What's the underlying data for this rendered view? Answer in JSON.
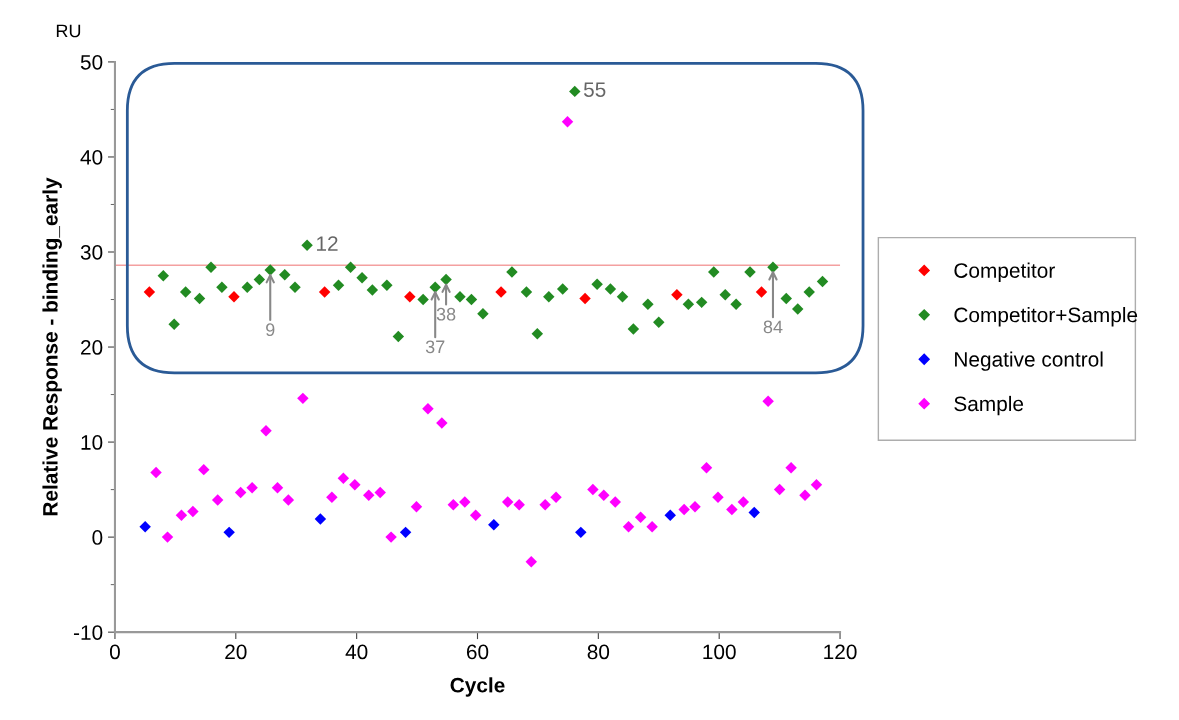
{
  "chart_data": {
    "type": "scatter",
    "xlabel": "Cycle",
    "ylabel": "Relative Response - binding_early",
    "xlim": [
      0,
      120
    ],
    "xticks": [
      0,
      20,
      40,
      60,
      80,
      100,
      120
    ],
    "ylim": [
      -10,
      50
    ],
    "yticks": [
      -10,
      0,
      10,
      20,
      30,
      40,
      50
    ],
    "marker": "diamond",
    "grid": false,
    "legend": "right",
    "series": [
      {
        "name": "Competitor",
        "color": "#ff0000",
        "x": [
          5.7,
          19.7,
          34.7,
          48.8,
          63.9,
          77.8,
          93.0,
          107.0
        ],
        "values": [
          25.8,
          25.3,
          25.8,
          25.3,
          25.8,
          25.1,
          25.5,
          25.8
        ]
      },
      {
        "name": "Competitor+Sample",
        "color": "#228b22",
        "x": [
          8.0,
          9.8,
          11.7,
          14.0,
          15.9,
          17.7,
          21.9,
          23.9,
          25.7,
          28.1,
          29.8,
          31.8,
          37.0,
          39.0,
          40.9,
          42.6,
          45.0,
          46.9,
          51.0,
          53.0,
          54.8,
          57.1,
          59.0,
          60.9,
          65.7,
          68.1,
          69.9,
          71.8,
          74.1,
          76.1,
          79.8,
          82.0,
          84.0,
          85.8,
          88.2,
          90.0,
          94.9,
          97.1,
          99.1,
          101.0,
          102.8,
          105.1,
          108.9,
          111.1,
          113.0,
          114.9,
          117.1
        ],
        "values": [
          27.5,
          22.4,
          25.8,
          25.1,
          28.4,
          26.3,
          26.3,
          27.1,
          28.1,
          27.6,
          26.3,
          30.7,
          26.5,
          28.4,
          27.3,
          26.0,
          26.5,
          21.1,
          25.0,
          26.3,
          27.1,
          25.3,
          25.0,
          23.5,
          27.9,
          25.8,
          21.4,
          25.3,
          26.1,
          46.9,
          26.6,
          26.1,
          25.3,
          21.9,
          24.5,
          22.6,
          24.5,
          24.7,
          27.9,
          25.5,
          24.5,
          27.9,
          28.4,
          25.1,
          24.0,
          25.8,
          26.9
        ]
      },
      {
        "name": "Negative control",
        "color": "#0000ff",
        "x": [
          5.0,
          18.9,
          34.0,
          48.1,
          62.7,
          77.1,
          91.9,
          105.8
        ],
        "values": [
          1.1,
          0.5,
          1.9,
          0.5,
          1.3,
          0.5,
          2.3,
          2.6
        ]
      },
      {
        "name": "Sample",
        "color": "#ff00ff",
        "x": [
          6.8,
          8.7,
          11.0,
          12.9,
          14.7,
          17.0,
          20.8,
          22.7,
          25.0,
          26.9,
          28.7,
          31.1,
          35.9,
          37.8,
          39.7,
          42.0,
          43.9,
          45.7,
          49.9,
          51.8,
          54.1,
          56.0,
          57.9,
          59.7,
          65.0,
          66.9,
          68.9,
          71.2,
          73.0,
          74.9,
          79.1,
          80.9,
          82.8,
          85.0,
          87.0,
          88.9,
          94.2,
          96.0,
          97.9,
          99.8,
          102.1,
          104.0,
          108.1,
          110.0,
          111.9,
          114.2,
          116.1
        ],
        "values": [
          6.8,
          0.0,
          2.3,
          2.7,
          7.1,
          3.9,
          4.7,
          5.2,
          11.2,
          5.2,
          3.9,
          14.6,
          4.2,
          6.2,
          5.5,
          4.4,
          4.7,
          0.0,
          3.2,
          13.5,
          12.0,
          3.4,
          3.7,
          2.3,
          3.7,
          3.4,
          -2.6,
          3.4,
          4.2,
          43.7,
          5.0,
          4.4,
          3.7,
          1.1,
          2.1,
          1.1,
          2.9,
          3.2,
          7.3,
          4.2,
          2.9,
          3.7,
          14.3,
          5.0,
          7.3,
          4.4,
          5.5
        ]
      }
    ],
    "ref_lines": [
      {
        "axis": "y",
        "value": 28.6,
        "color": "#f4a0a0"
      }
    ],
    "annotations": [
      "RU",
      {
        "text": "12",
        "x": 31.8,
        "y": 30.7
      },
      {
        "text": "55",
        "x": 76.1,
        "y": 46.9
      },
      {
        "text": "9",
        "x": 25.7,
        "y": 28.1
      },
      {
        "text": "37",
        "x": 53.0,
        "y": 26.3
      },
      {
        "text": "38",
        "x": 54.8,
        "y": 27.1
      },
      {
        "text": "84",
        "x": 108.9,
        "y": 28.4
      }
    ]
  }
}
